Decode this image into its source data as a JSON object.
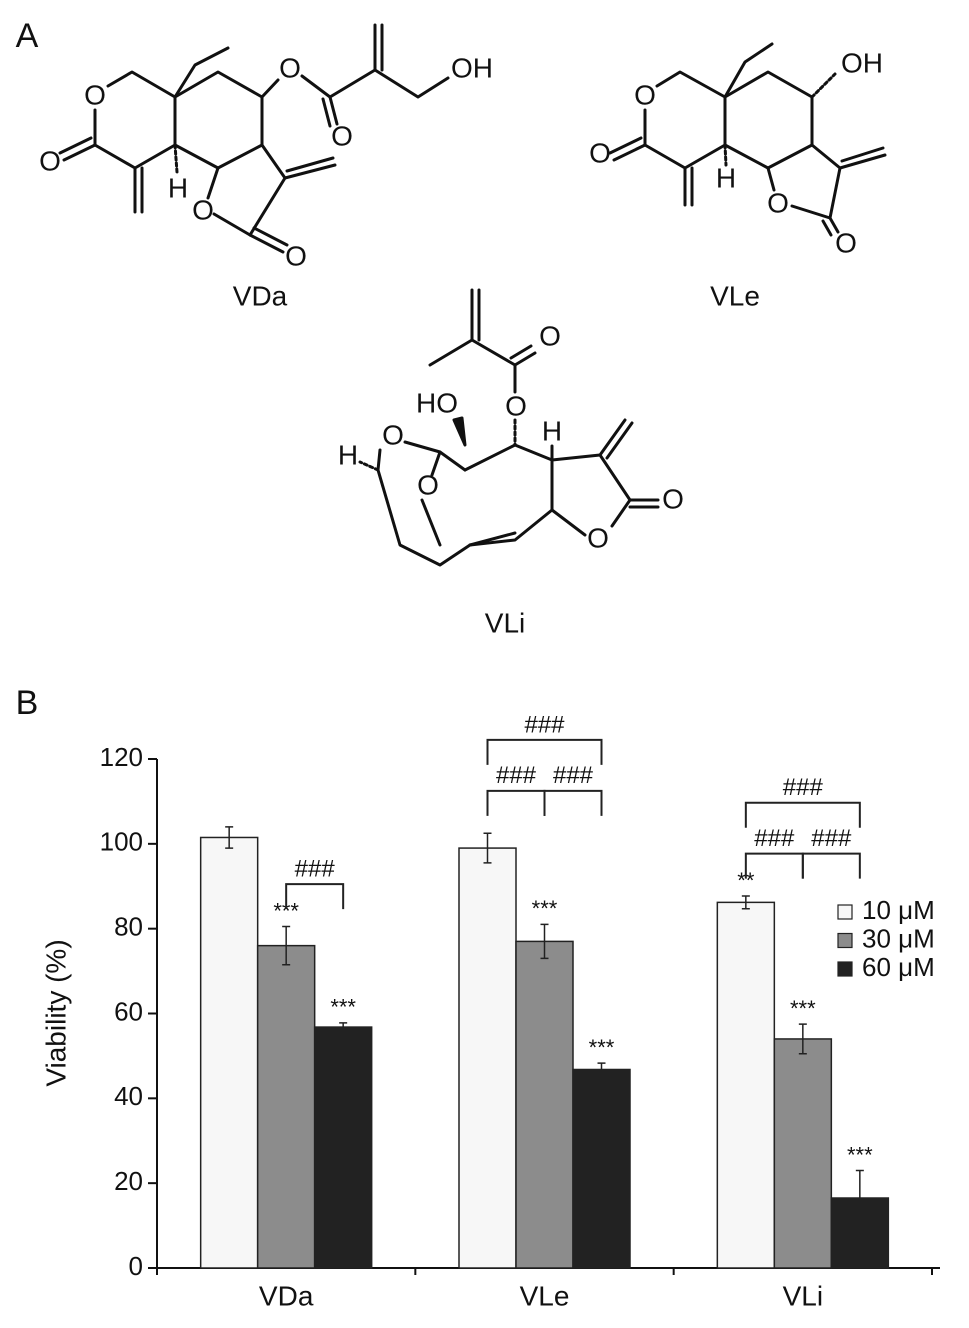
{
  "panel_a": {
    "label": "A",
    "compounds": [
      {
        "name": "VDa",
        "atoms": [
          "O",
          "O",
          "H",
          "O",
          "O",
          "O",
          "O",
          "OH"
        ]
      },
      {
        "name": "VLe",
        "atoms": [
          "O",
          "O",
          "H",
          "O",
          "O",
          "OH"
        ]
      },
      {
        "name": "VLi",
        "atoms": [
          "O",
          "HO",
          "O",
          "H",
          "H",
          "O",
          "O",
          "O",
          "O"
        ]
      }
    ]
  },
  "chart_data": {
    "type": "bar",
    "panel_label": "B",
    "y_label": "Viability (%)",
    "categories": [
      "VDa",
      "VLe",
      "VLi"
    ],
    "series": [
      {
        "name": "10 μM",
        "color": "#f7f7f7",
        "values": [
          101.5,
          99,
          86.2
        ],
        "errors": [
          2.5,
          3.5,
          1.5
        ],
        "significance": [
          null,
          null,
          "**"
        ]
      },
      {
        "name": "30 μM",
        "color": "#8c8c8c",
        "values": [
          76,
          77,
          54
        ],
        "errors": [
          4.5,
          4,
          3.5
        ],
        "significance": [
          "***",
          "***",
          "***"
        ]
      },
      {
        "name": "60 μM",
        "color": "#222222",
        "values": [
          56.8,
          46.8,
          16.5
        ],
        "errors": [
          1,
          1.5,
          6.5
        ],
        "significance": [
          "***",
          "***",
          "***"
        ]
      }
    ],
    "comparisons": [
      {
        "category": 0,
        "pair": [
          1,
          2
        ],
        "label": "###"
      },
      {
        "category": 1,
        "pair": [
          0,
          1
        ],
        "label": "###"
      },
      {
        "category": 1,
        "pair": [
          1,
          2
        ],
        "label": "###"
      },
      {
        "category": 1,
        "pair": [
          0,
          2
        ],
        "label": "###"
      },
      {
        "category": 2,
        "pair": [
          0,
          1
        ],
        "label": "###"
      },
      {
        "category": 2,
        "pair": [
          1,
          2
        ],
        "label": "###"
      },
      {
        "category": 2,
        "pair": [
          0,
          2
        ],
        "label": "###"
      }
    ],
    "ylim": [
      0,
      120
    ],
    "yticks": [
      0,
      20,
      40,
      60,
      80,
      100,
      120
    ],
    "legend": "right"
  }
}
